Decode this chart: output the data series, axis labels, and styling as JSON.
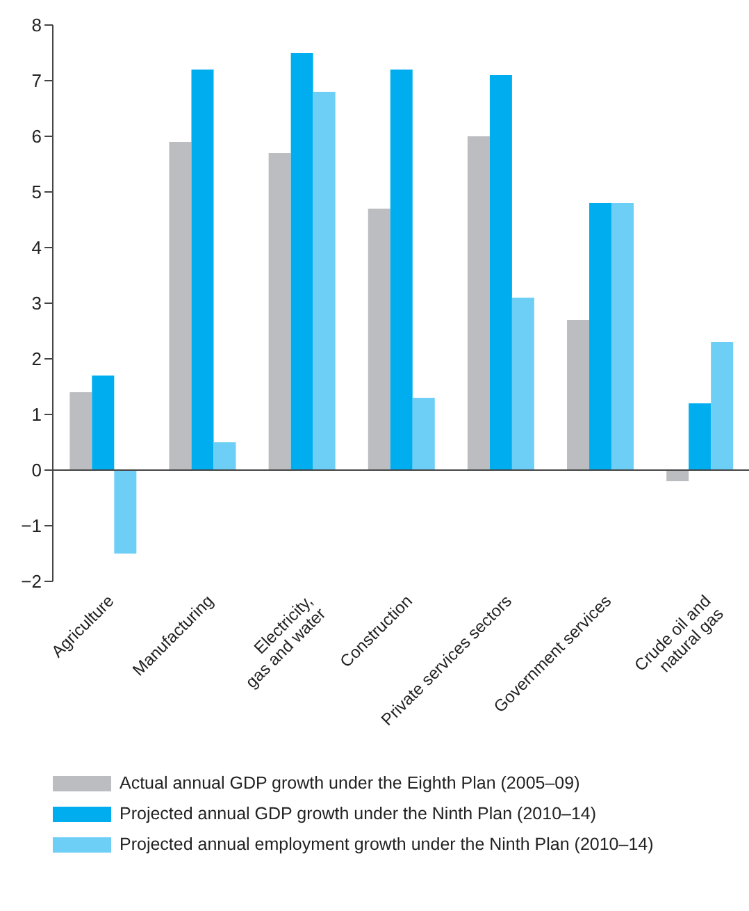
{
  "chart_data": {
    "type": "bar",
    "categories": [
      "Agriculture",
      "Manufacturing",
      "Electricity,\ngas and water",
      "Construction",
      "Private services sectors",
      "Government services",
      "Crude oil and\nnatural gas"
    ],
    "series": [
      {
        "name": "Actual annual GDP growth under the Eighth Plan (2005–09)",
        "color": "#bcbdc0",
        "values": [
          1.4,
          5.9,
          5.7,
          4.7,
          6.0,
          2.7,
          -0.2
        ]
      },
      {
        "name": "Projected annual GDP growth under the Ninth Plan (2010–14)",
        "color": "#00aeef",
        "values": [
          1.7,
          7.2,
          7.5,
          7.2,
          7.1,
          4.8,
          1.2
        ]
      },
      {
        "name": "Projected annual employment growth under the Ninth Plan (2010–14)",
        "color": "#6dcff6",
        "values": [
          -1.5,
          0.5,
          6.8,
          1.3,
          3.1,
          4.8,
          2.3
        ]
      }
    ],
    "ylim": [
      -2,
      8
    ],
    "yticks": [
      -2,
      -1,
      0,
      1,
      2,
      3,
      4,
      5,
      6,
      7,
      8
    ],
    "ref_lines": [
      {
        "axis": "y",
        "value": 0
      }
    ],
    "legend": "bottom",
    "grid": false
  }
}
